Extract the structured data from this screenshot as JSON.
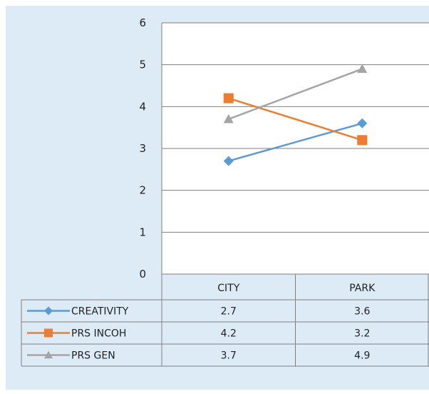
{
  "chart_data": {
    "type": "line",
    "categories": [
      "CITY",
      "PARK"
    ],
    "series": [
      {
        "name": "CREATIVITY",
        "values": [
          2.7,
          3.6
        ],
        "color": "#5B9BD5",
        "marker": "diamond"
      },
      {
        "name": "PRS INCOH",
        "values": [
          4.2,
          3.2
        ],
        "color": "#ED7D31",
        "marker": "square"
      },
      {
        "name": "PRS GEN",
        "values": [
          3.7,
          4.9
        ],
        "color": "#A5A5A5",
        "marker": "triangle"
      }
    ],
    "ylim": [
      0,
      6
    ],
    "yticks": [
      0,
      1,
      2,
      3,
      4,
      5,
      6
    ],
    "grid": true,
    "legend": "data-table-left",
    "title": "",
    "xlabel": "",
    "ylabel": ""
  },
  "colors": {
    "background": "#DDEBF7",
    "plot_area": "#FFFFFF",
    "gridline": "#7F7F7F",
    "table_border": "#7F7F7F"
  }
}
